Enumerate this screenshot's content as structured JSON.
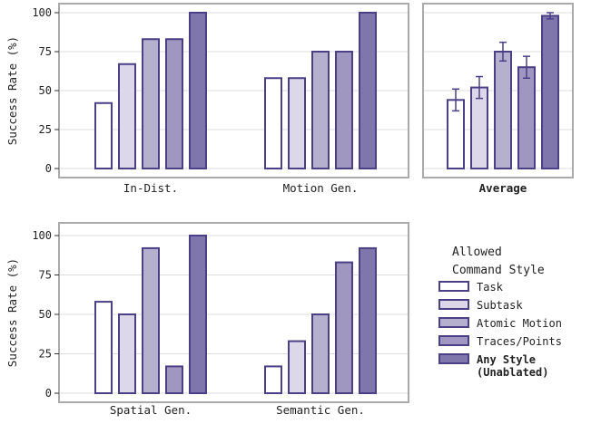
{
  "style": {
    "bar_fills": [
      "#ffffff",
      "#dcd8ea",
      "#b6b0cf",
      "#9f97c0",
      "#7f76ac"
    ],
    "bar_stroke": "#4b3f86",
    "grid_color": "#dddddd",
    "frame_color": "#aaaaaa"
  },
  "chart_data": [
    {
      "type": "bar",
      "title": "",
      "ylabel": "Success Rate (%)",
      "ylim": [
        0,
        100
      ],
      "yticks": [
        "0",
        "25",
        "50",
        "75",
        "100"
      ],
      "grid": true,
      "categories": [
        "In-Dist.",
        "Motion Gen."
      ],
      "series": [
        {
          "name": "Task",
          "values": [
            42,
            58
          ]
        },
        {
          "name": "Subtask",
          "values": [
            67,
            58
          ]
        },
        {
          "name": "Atomic Motion",
          "values": [
            83,
            75
          ]
        },
        {
          "name": "Traces/Points",
          "values": [
            83,
            75
          ]
        },
        {
          "name": "Any Style (Unablated)",
          "values": [
            100,
            100
          ]
        }
      ]
    },
    {
      "type": "bar",
      "title": "",
      "ylim": [
        0,
        100
      ],
      "grid": true,
      "categories": [
        "Average"
      ],
      "series": [
        {
          "name": "Task",
          "values": [
            44
          ],
          "error": [
            7
          ]
        },
        {
          "name": "Subtask",
          "values": [
            52
          ],
          "error": [
            7
          ]
        },
        {
          "name": "Atomic Motion",
          "values": [
            75
          ],
          "error": [
            6
          ]
        },
        {
          "name": "Traces/Points",
          "values": [
            65
          ],
          "error": [
            7
          ]
        },
        {
          "name": "Any Style (Unablated)",
          "values": [
            98
          ],
          "error": [
            2
          ]
        }
      ]
    },
    {
      "type": "bar",
      "title": "",
      "ylabel": "Success Rate (%)",
      "ylim": [
        0,
        100
      ],
      "yticks": [
        "0",
        "25",
        "50",
        "75",
        "100"
      ],
      "grid": true,
      "categories": [
        "Spatial Gen.",
        "Semantic Gen."
      ],
      "series": [
        {
          "name": "Task",
          "values": [
            58,
            17
          ]
        },
        {
          "name": "Subtask",
          "values": [
            50,
            33
          ]
        },
        {
          "name": "Atomic Motion",
          "values": [
            92,
            50
          ]
        },
        {
          "name": "Traces/Points",
          "values": [
            17,
            83
          ]
        },
        {
          "name": "Any Style (Unablated)",
          "values": [
            100,
            92
          ]
        }
      ]
    }
  ],
  "legend": {
    "title_line1": "Allowed",
    "title_line2": "Command Style",
    "items": [
      {
        "label": "Task"
      },
      {
        "label": "Subtask"
      },
      {
        "label": "Atomic Motion"
      },
      {
        "label": "Traces/Points"
      },
      {
        "label": "Any Style",
        "label2": "(Unablated)",
        "bold": true
      }
    ]
  }
}
